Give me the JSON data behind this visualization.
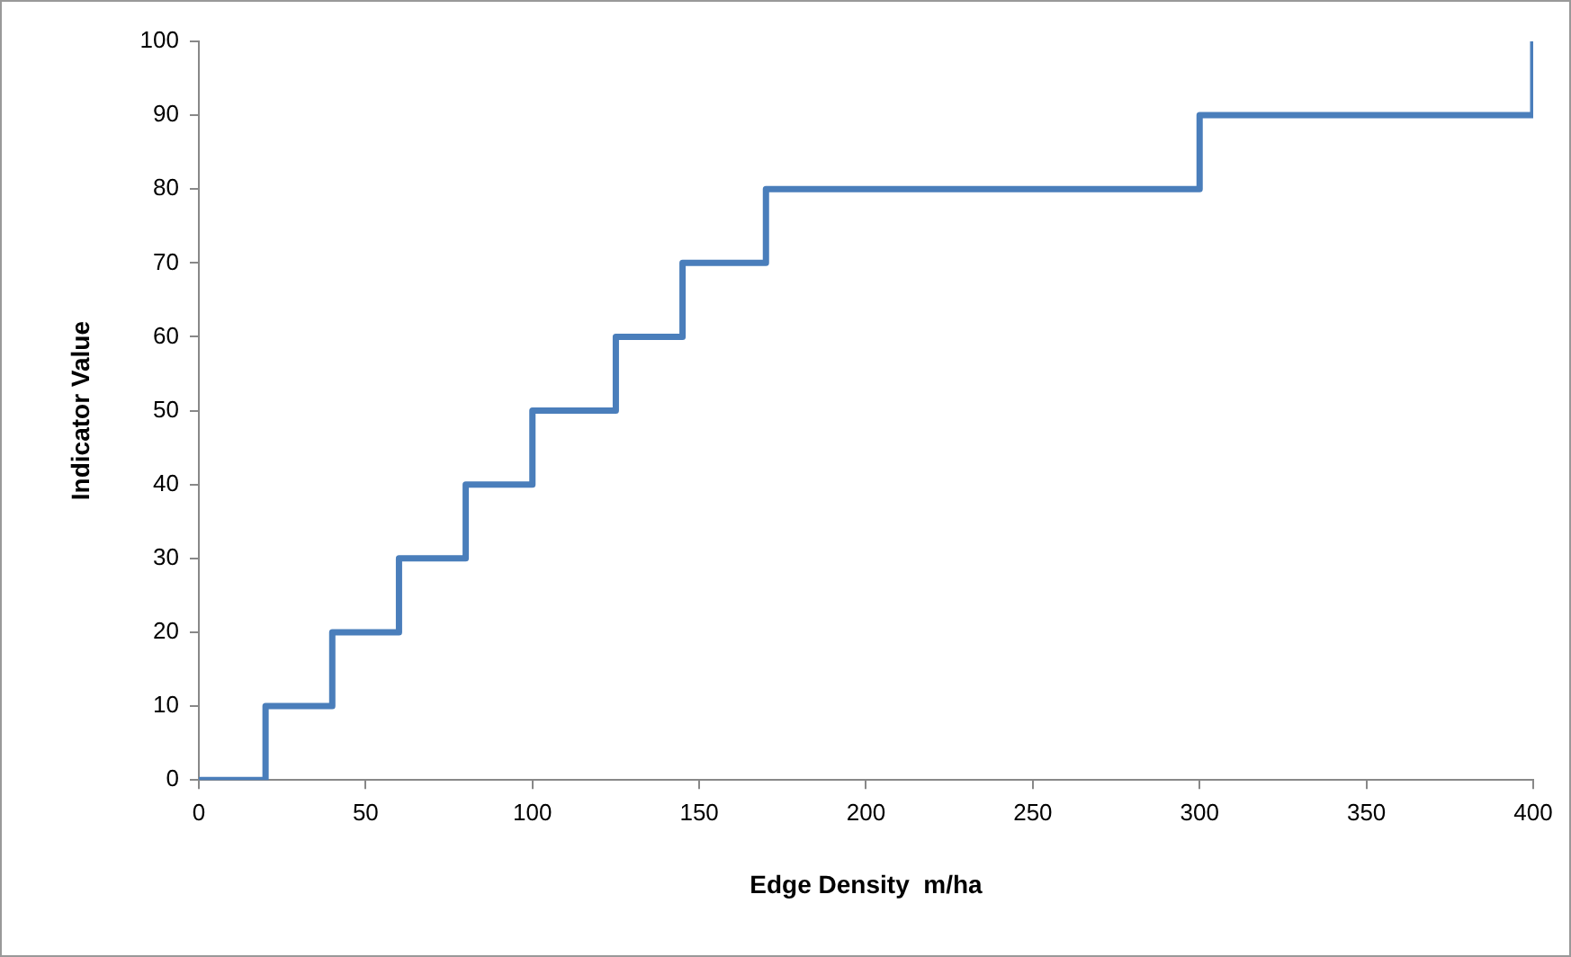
{
  "chart_data": {
    "type": "step",
    "xlabel": "Edge Density  m/ha",
    "ylabel": "Indicator Value",
    "x": [
      0,
      20,
      40,
      60,
      80,
      100,
      125,
      145,
      170,
      300,
      400
    ],
    "series": [
      {
        "color": "#4a7ebb",
        "values": [
          0,
          10,
          20,
          30,
          40,
          50,
          60,
          70,
          80,
          90,
          100
        ]
      }
    ],
    "xlim": [
      0,
      400
    ],
    "xticks": [
      0,
      50,
      100,
      150,
      200,
      250,
      300,
      350,
      400
    ],
    "ylim": [
      0,
      100
    ],
    "yticks": [
      0,
      10,
      20,
      30,
      40,
      50,
      60,
      70,
      80,
      90,
      100
    ],
    "grid": false,
    "legend": false,
    "marker": "none",
    "line_style": "solid"
  }
}
